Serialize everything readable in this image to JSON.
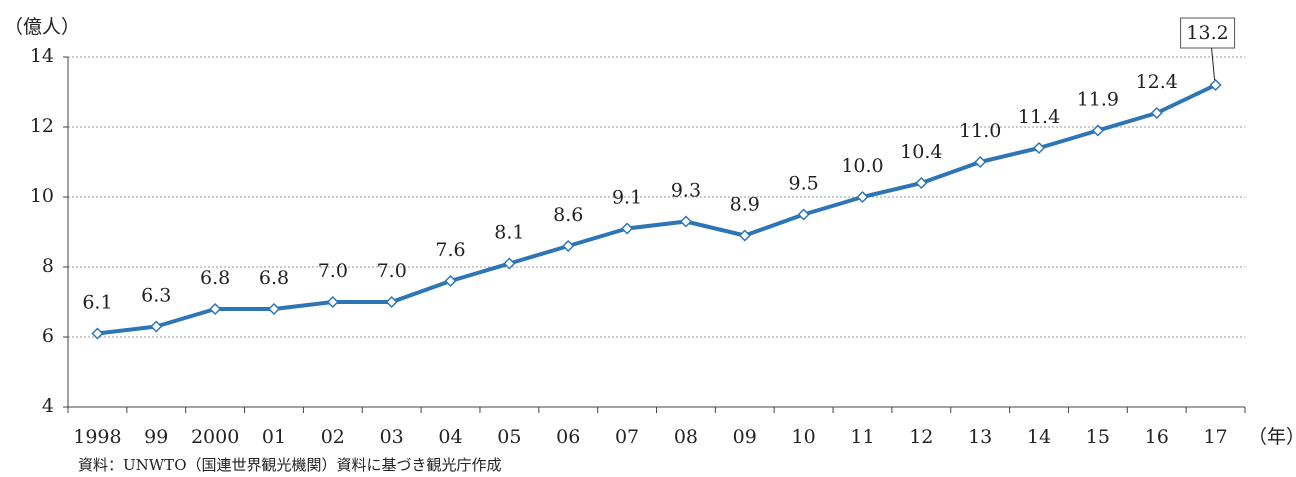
{
  "chart_data": {
    "type": "line",
    "y_axis_label": "（億人）",
    "x_axis_label": "（年）",
    "source": "資料：UNWTO（国連世界観光機関）資料に基づき観光庁作成",
    "categories": [
      "1998",
      "99",
      "2000",
      "01",
      "02",
      "03",
      "04",
      "05",
      "06",
      "07",
      "08",
      "09",
      "10",
      "11",
      "12",
      "13",
      "14",
      "15",
      "16",
      "17"
    ],
    "series": [
      {
        "color": "#2e75b6",
        "values": [
          6.1,
          6.3,
          6.8,
          6.8,
          7.0,
          7.0,
          7.6,
          8.1,
          8.6,
          9.1,
          9.3,
          8.9,
          9.5,
          10.0,
          10.4,
          11.0,
          11.4,
          11.9,
          12.4,
          13.2
        ],
        "value_labels": [
          "6.1",
          "6.3",
          "6.8",
          "6.8",
          "7.0",
          "7.0",
          "7.6",
          "8.1",
          "8.6",
          "9.1",
          "9.3",
          "8.9",
          "9.5",
          "10.0",
          "10.4",
          "11.0",
          "11.4",
          "11.9",
          "12.4",
          "13.2"
        ]
      }
    ],
    "ylim": [
      4,
      14
    ],
    "yticks": [
      4,
      6,
      8,
      10,
      12,
      14
    ],
    "grid": true
  }
}
